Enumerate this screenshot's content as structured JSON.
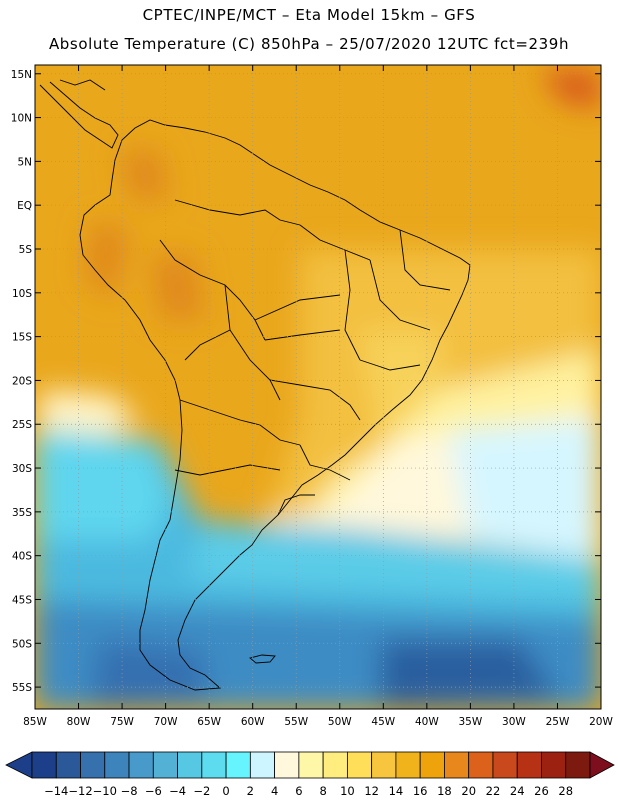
{
  "header": {
    "line1": "CPTEC/INPE/MCT –  Eta Model 15km – GFS",
    "line2": "Absolute Temperature (C) 850hPa – 25/07/2020 12UTC fct=239h"
  },
  "axes": {
    "lat_labels": [
      "15N",
      "10N",
      "5N",
      "EQ",
      "5S",
      "10S",
      "15S",
      "20S",
      "25S",
      "30S",
      "35S",
      "40S",
      "45S",
      "50S",
      "55S"
    ],
    "lon_labels": [
      "85W",
      "80W",
      "75W",
      "70W",
      "65W",
      "60W",
      "55W",
      "50W",
      "45W",
      "40W",
      "35W",
      "30W",
      "25W",
      "20W"
    ],
    "lat_range": [
      16,
      -57.5
    ],
    "lon_range": [
      -85,
      -20
    ]
  },
  "colorbar": {
    "labels": [
      "-14",
      "-12",
      "-10",
      "-8",
      "-6",
      "-4",
      "-2",
      "0",
      "2",
      "4",
      "6",
      "8",
      "10",
      "12",
      "14",
      "16",
      "18",
      "20",
      "22",
      "24",
      "26",
      "28"
    ],
    "colors": [
      "#1d3f8a",
      "#2b5899",
      "#3671ad",
      "#3e84bc",
      "#479ac9",
      "#54b1d6",
      "#57c8e3",
      "#5cdcee",
      "#66f4ff",
      "#ccf5ff",
      "#fff8dc",
      "#fff7a8",
      "#ffed80",
      "#ffde5a",
      "#f8c63e",
      "#f1b31b",
      "#eea30d",
      "#e8871c",
      "#dc611a",
      "#c9481c",
      "#b73214",
      "#9c2110",
      "#7d1a0f"
    ],
    "under_color": "#1d3f8a",
    "over_color": "#7d0e1e"
  }
}
